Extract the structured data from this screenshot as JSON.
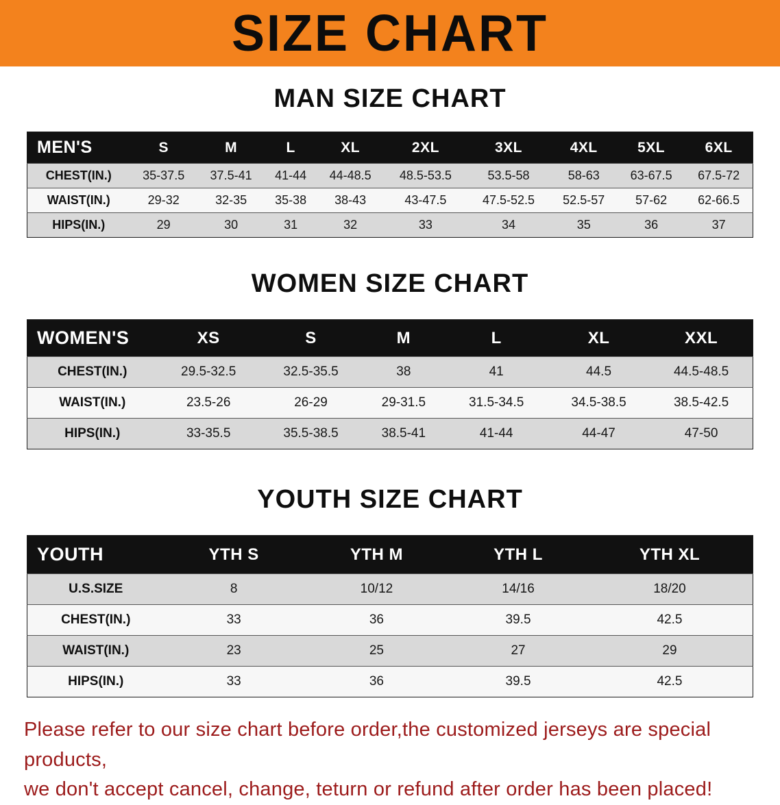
{
  "banner": {
    "title": "SIZE CHART",
    "bg_color": "#f3821d",
    "text_color": "#0c0c0c"
  },
  "sections": [
    {
      "heading": "MAN SIZE CHART",
      "table": {
        "id": "mens",
        "header_label": "MEN'S",
        "columns": [
          "S",
          "M",
          "L",
          "XL",
          "2XL",
          "3XL",
          "4XL",
          "5XL",
          "6XL"
        ],
        "rows": [
          {
            "label": "CHEST(IN.)",
            "values": [
              "35-37.5",
              "37.5-41",
              "41-44",
              "44-48.5",
              "48.5-53.5",
              "53.5-58",
              "58-63",
              "63-67.5",
              "67.5-72"
            ]
          },
          {
            "label": "WAIST(IN.)",
            "values": [
              "29-32",
              "32-35",
              "35-38",
              "38-43",
              "43-47.5",
              "47.5-52.5",
              "52.5-57",
              "57-62",
              "62-66.5"
            ]
          },
          {
            "label": "HIPS(IN.)",
            "values": [
              "29",
              "30",
              "31",
              "32",
              "33",
              "34",
              "35",
              "36",
              "37"
            ]
          }
        ]
      }
    },
    {
      "heading": "WOMEN SIZE CHART",
      "table": {
        "id": "womens",
        "header_label": "WOMEN'S",
        "columns": [
          "XS",
          "S",
          "M",
          "L",
          "XL",
          "XXL"
        ],
        "rows": [
          {
            "label": "CHEST(IN.)",
            "values": [
              "29.5-32.5",
              "32.5-35.5",
              "38",
              "41",
              "44.5",
              "44.5-48.5"
            ]
          },
          {
            "label": "WAIST(IN.)",
            "values": [
              "23.5-26",
              "26-29",
              "29-31.5",
              "31.5-34.5",
              "34.5-38.5",
              "38.5-42.5"
            ]
          },
          {
            "label": "HIPS(IN.)",
            "values": [
              "33-35.5",
              "35.5-38.5",
              "38.5-41",
              "41-44",
              "44-47",
              "47-50"
            ]
          }
        ]
      }
    },
    {
      "heading": "YOUTH SIZE CHART",
      "table": {
        "id": "youth",
        "header_label": "YOUTH",
        "columns": [
          "YTH S",
          "YTH M",
          "YTH L",
          "YTH XL"
        ],
        "rows": [
          {
            "label": "U.S.SIZE",
            "values": [
              "8",
              "10/12",
              "14/16",
              "18/20"
            ]
          },
          {
            "label": "CHEST(IN.)",
            "values": [
              "33",
              "36",
              "39.5",
              "42.5"
            ]
          },
          {
            "label": "WAIST(IN.)",
            "values": [
              "23",
              "25",
              "27",
              "29"
            ]
          },
          {
            "label": "HIPS(IN.)",
            "values": [
              "33",
              "36",
              "39.5",
              "42.5"
            ]
          }
        ]
      }
    }
  ],
  "note": {
    "color": "#9c1b1b",
    "lines": [
      "Please refer to our size chart before order,the customized jerseys are special products,",
      "we don't accept cancel, change, teturn or refund after order has been placed!"
    ]
  }
}
